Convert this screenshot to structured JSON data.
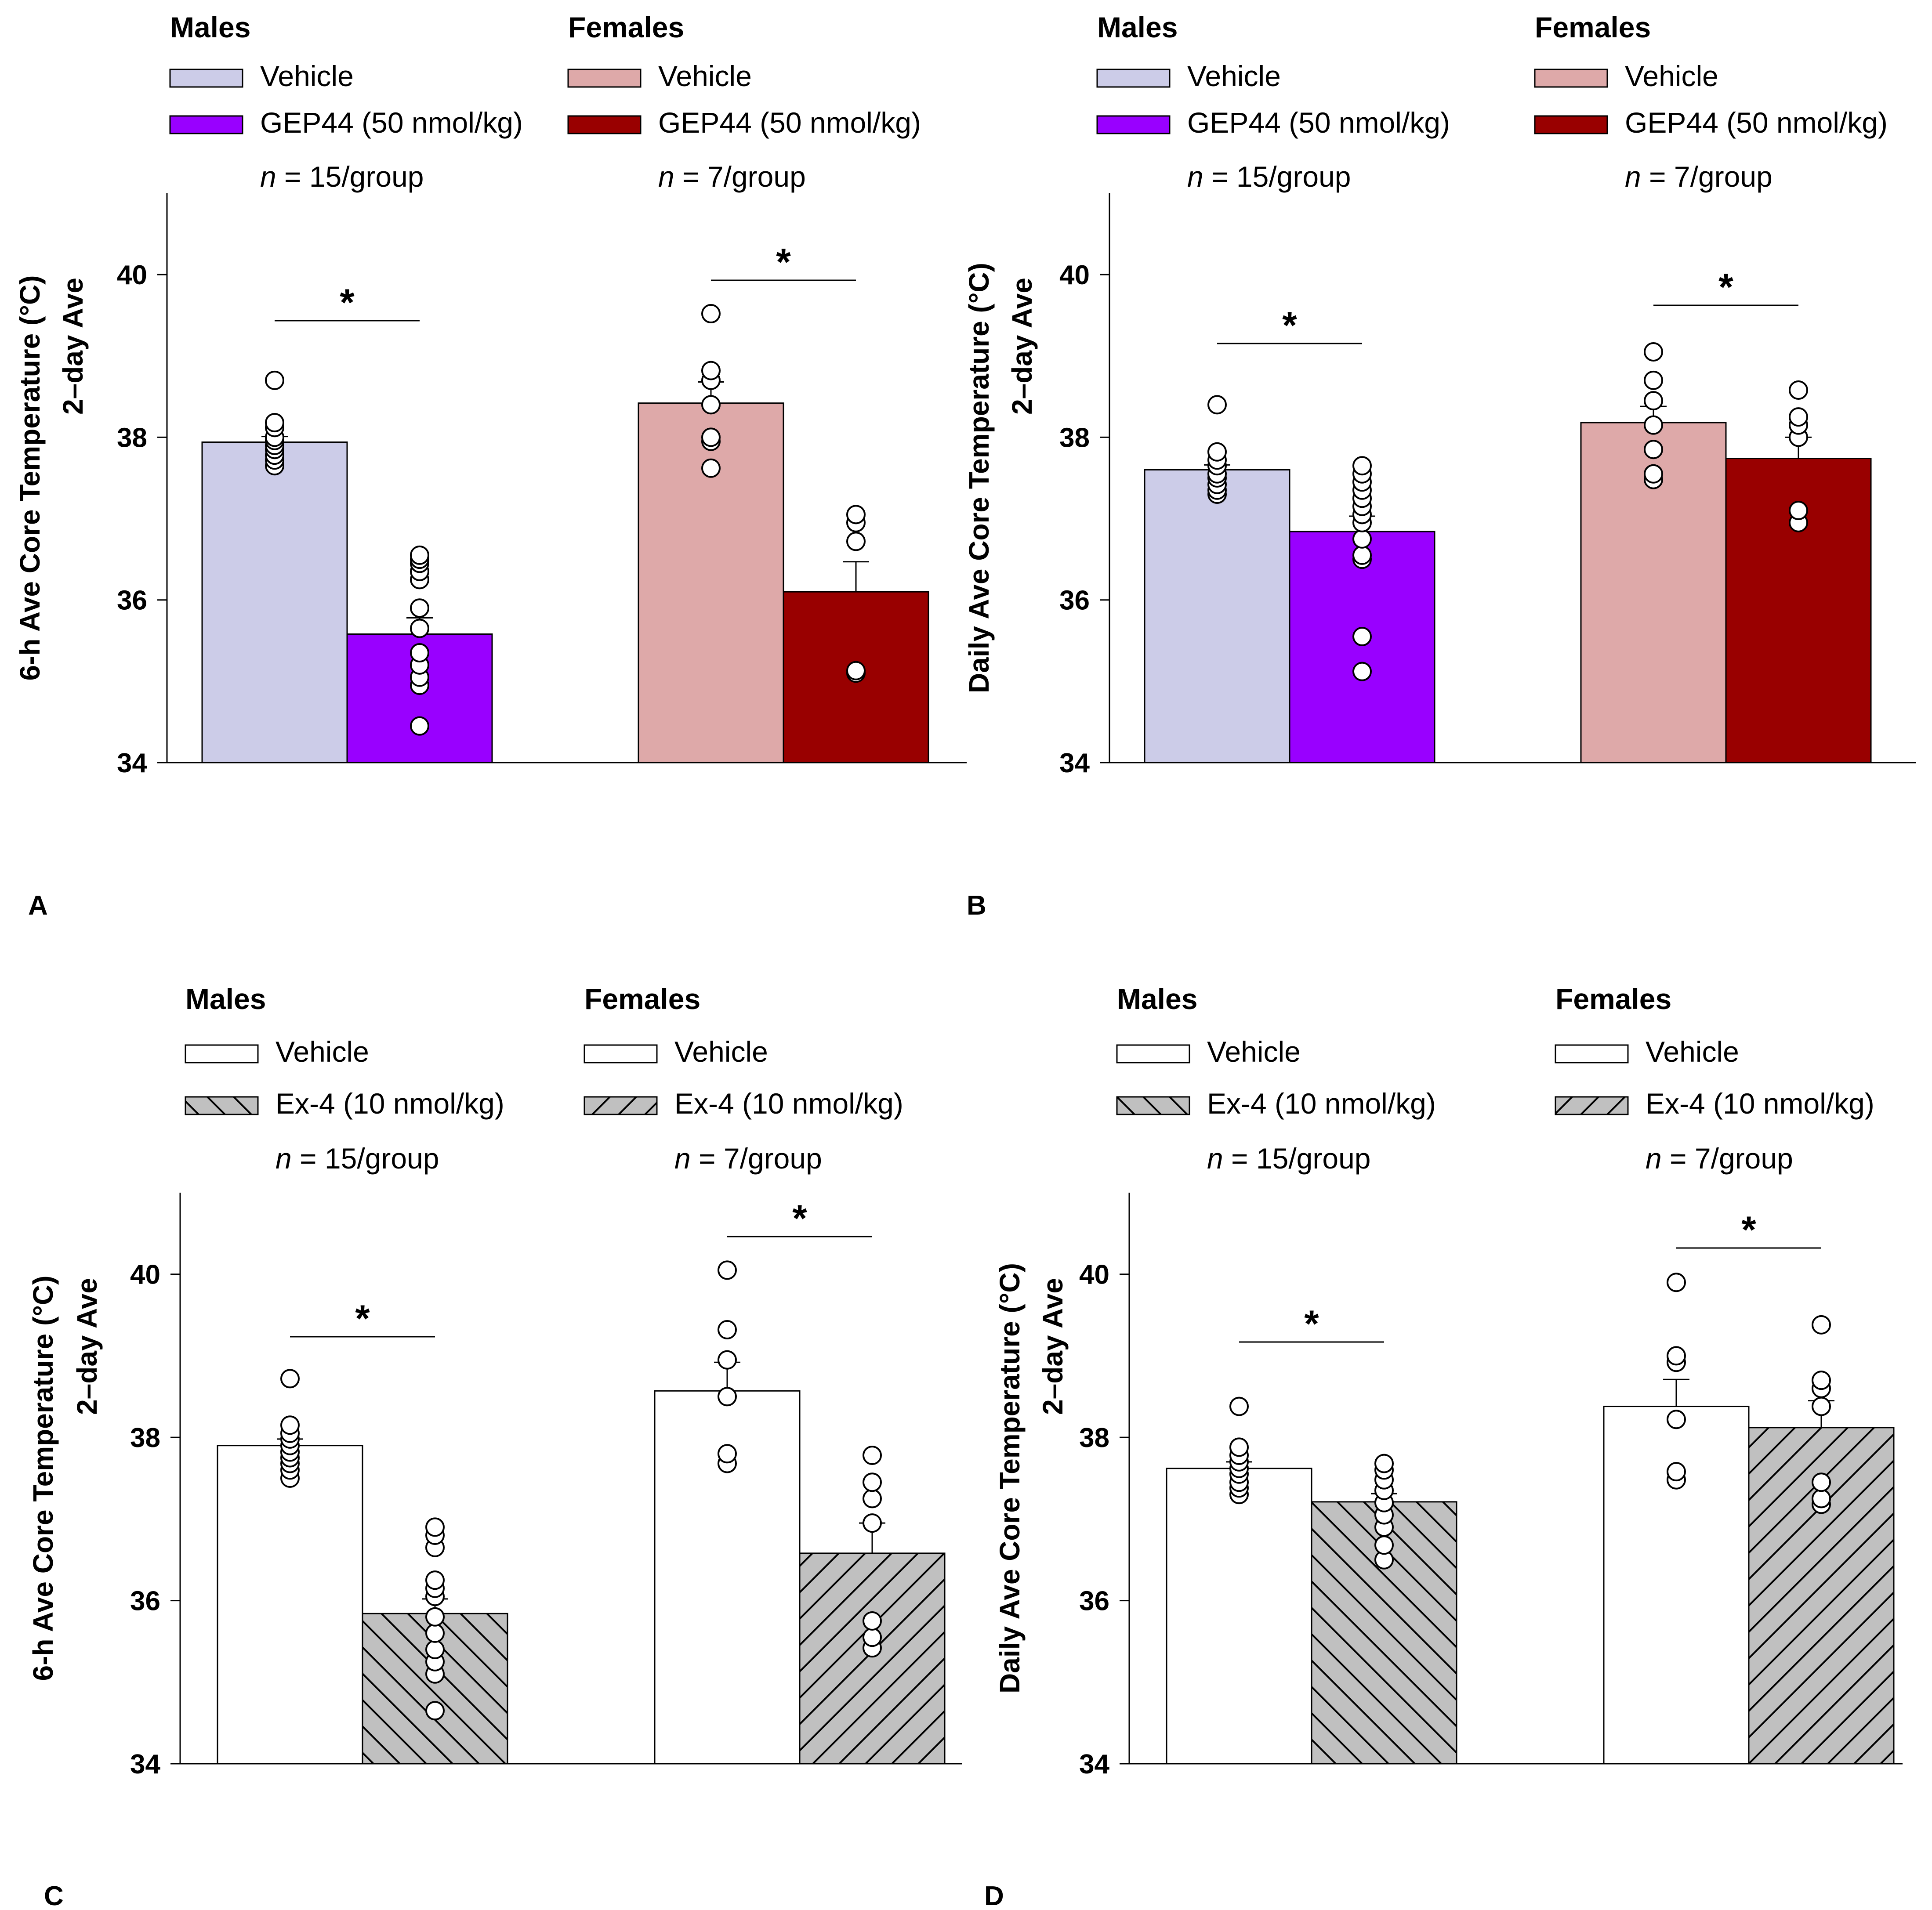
{
  "chart_data": [
    {
      "type": "bar",
      "panel": "A",
      "ylabel": "6-h Ave Core Temperature (°C)",
      "ylabel2": "2–day Ave",
      "ylim": [
        34,
        41
      ],
      "yticks": [
        34,
        36,
        38,
        40
      ],
      "groups": [
        {
          "title": "Males",
          "n_label": "n",
          "n_rest": " = 15/group",
          "bars": [
            {
              "name": "Vehicle",
              "value": 37.94,
              "sem": 0.07,
              "color": "#cccce8",
              "pattern": "none",
              "points": [
                37.65,
                37.72,
                37.78,
                37.85,
                37.9,
                37.96,
                38.0,
                38.12,
                38.18,
                38.7
              ]
            },
            {
              "name": "GEP44 (50 nmol/kg)",
              "value": 35.58,
              "sem": 0.2,
              "color": "#9900ff",
              "pattern": "none",
              "points": [
                34.45,
                34.95,
                35.05,
                35.2,
                35.35,
                35.65,
                35.9,
                36.25,
                36.35,
                36.45,
                36.5,
                36.55
              ]
            }
          ],
          "sig": "*"
        },
        {
          "title": "Females",
          "n_label": "n",
          "n_rest": " = 7/group",
          "bars": [
            {
              "name": "Vehicle",
              "value": 38.42,
              "sem": 0.26,
              "color": "#dea9a9",
              "pattern": "none",
              "points": [
                37.62,
                37.95,
                38.0,
                38.4,
                38.7,
                38.82,
                39.52
              ]
            },
            {
              "name": "GEP44 (50 nmol/kg)",
              "value": 36.1,
              "sem": 0.37,
              "color": "#990000",
              "pattern": "none",
              "points": [
                35.1,
                35.13,
                36.72,
                36.95,
                37.05
              ]
            }
          ],
          "sig": "*"
        }
      ]
    },
    {
      "type": "bar",
      "panel": "B",
      "ylabel": "Daily Ave Core Temperature (°C)",
      "ylabel2": "2–day Ave",
      "ylim": [
        34,
        41
      ],
      "yticks": [
        34,
        36,
        38,
        40
      ],
      "groups": [
        {
          "title": "Males",
          "n_label": "n",
          "n_rest": " = 15/group",
          "bars": [
            {
              "name": "Vehicle",
              "value": 37.6,
              "sem": 0.06,
              "color": "#cccce8",
              "pattern": "none",
              "points": [
                37.3,
                37.35,
                37.42,
                37.5,
                37.55,
                37.65,
                37.72,
                37.82,
                38.4
              ]
            },
            {
              "name": "GEP44 (50 nmol/kg)",
              "value": 36.84,
              "sem": 0.19,
              "color": "#9900ff",
              "pattern": "none",
              "points": [
                35.12,
                35.55,
                36.5,
                36.55,
                36.75,
                36.95,
                37.05,
                37.15,
                37.25,
                37.35,
                37.45,
                37.55,
                37.65
              ]
            }
          ],
          "sig": "*"
        },
        {
          "title": "Females",
          "n_label": "n",
          "n_rest": " = 7/group",
          "bars": [
            {
              "name": "Vehicle",
              "value": 38.18,
              "sem": 0.2,
              "color": "#dea9a9",
              "pattern": "none",
              "points": [
                37.48,
                37.55,
                37.85,
                38.15,
                38.45,
                38.7,
                39.05
              ]
            },
            {
              "name": "GEP44 (50 nmol/kg)",
              "value": 37.74,
              "sem": 0.26,
              "color": "#990000",
              "pattern": "none",
              "points": [
                36.95,
                37.1,
                38.0,
                38.15,
                38.25,
                38.58
              ]
            }
          ],
          "sig": "*"
        }
      ]
    },
    {
      "type": "bar",
      "panel": "C",
      "ylabel": "6-h Ave Core Temperature (°C)",
      "ylabel2": "2–day Ave",
      "ylim": [
        34,
        41
      ],
      "yticks": [
        34,
        36,
        38,
        40
      ],
      "groups": [
        {
          "title": "Males",
          "n_label": "n",
          "n_rest": " = 15/group",
          "bars": [
            {
              "name": "Vehicle",
              "value": 37.9,
              "sem": 0.08,
              "color": "#ffffff",
              "pattern": "none",
              "points": [
                37.5,
                37.6,
                37.68,
                37.75,
                37.82,
                37.9,
                37.98,
                38.05,
                38.15,
                38.72
              ]
            },
            {
              "name": "Ex-4 (10 nmol/kg)",
              "value": 35.84,
              "sem": 0.18,
              "color": "#c0c0c0",
              "pattern": "back",
              "points": [
                34.65,
                35.1,
                35.25,
                35.4,
                35.6,
                35.8,
                36.05,
                36.15,
                36.25,
                36.65,
                36.8,
                36.9
              ]
            }
          ],
          "sig": "*"
        },
        {
          "title": "Females",
          "n_label": "n",
          "n_rest": " = 7/group",
          "bars": [
            {
              "name": "Vehicle",
              "value": 38.57,
              "sem": 0.35,
              "color": "#ffffff",
              "pattern": "none",
              "points": [
                37.68,
                37.8,
                38.5,
                38.95,
                39.32,
                40.05
              ]
            },
            {
              "name": "Ex-4 (10 nmol/kg)",
              "value": 36.58,
              "sem": 0.37,
              "color": "#c0c0c0",
              "pattern": "fwd",
              "points": [
                35.42,
                35.55,
                35.75,
                36.95,
                37.25,
                37.45,
                37.78
              ]
            }
          ],
          "sig": "*"
        }
      ]
    },
    {
      "type": "bar",
      "panel": "D",
      "ylabel": "Daily Ave Core Temperature (°C)",
      "ylabel2": "2–day Ave",
      "ylim": [
        34,
        41
      ],
      "yticks": [
        34,
        36,
        38,
        40
      ],
      "groups": [
        {
          "title": "Males",
          "n_label": "n",
          "n_rest": " = 15/group",
          "bars": [
            {
              "name": "Vehicle",
              "value": 37.62,
              "sem": 0.08,
              "color": "#ffffff",
              "pattern": "none",
              "points": [
                37.3,
                37.38,
                37.45,
                37.55,
                37.62,
                37.7,
                37.78,
                37.88,
                38.38
              ]
            },
            {
              "name": "Ex-4 (10 nmol/kg)",
              "value": 37.21,
              "sem": 0.1,
              "color": "#c0c0c0",
              "pattern": "back",
              "points": [
                36.5,
                36.68,
                36.9,
                37.05,
                37.2,
                37.35,
                37.48,
                37.6,
                37.68
              ]
            }
          ],
          "sig": "*"
        },
        {
          "title": "Females",
          "n_label": "n",
          "n_rest": " = 7/group",
          "bars": [
            {
              "name": "Vehicle",
              "value": 38.38,
              "sem": 0.33,
              "color": "#ffffff",
              "pattern": "none",
              "points": [
                37.48,
                37.58,
                38.22,
                38.92,
                39.0,
                39.9
              ]
            },
            {
              "name": "Ex-4 (10 nmol/kg)",
              "value": 38.12,
              "sem": 0.33,
              "color": "#c0c0c0",
              "pattern": "fwd",
              "points": [
                37.18,
                37.25,
                37.45,
                38.38,
                38.6,
                38.7,
                39.38
              ]
            }
          ],
          "sig": "*"
        }
      ]
    }
  ]
}
